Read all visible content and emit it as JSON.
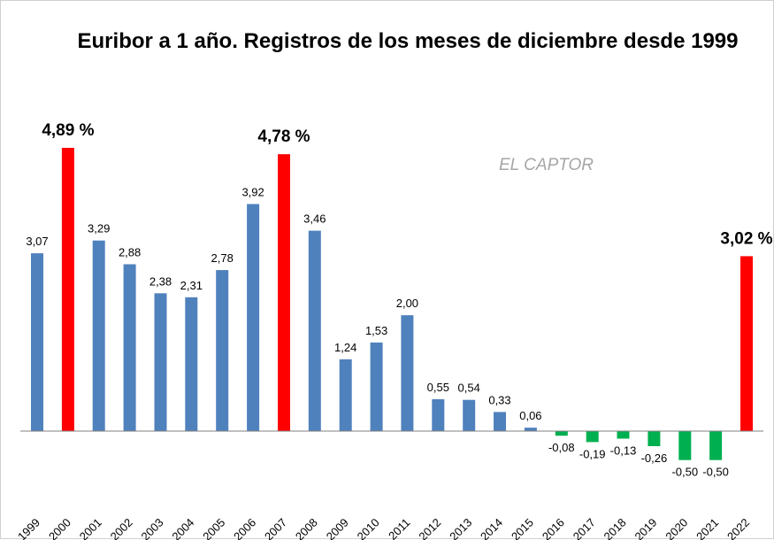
{
  "watermark": "EL CAPTOR",
  "colors": {
    "normal": "#4f81bd",
    "peak": "#ff0000",
    "negative": "#00b050",
    "axis": "#808080"
  },
  "chart_data": {
    "type": "bar",
    "title": "Euribor a 1 año. Registros de los meses de diciembre desde 1999",
    "xlabel": "",
    "ylabel": "",
    "ylim": [
      -0.7,
      5.3
    ],
    "grid": false,
    "categories": [
      "1999",
      "2000",
      "2001",
      "2002",
      "2003",
      "2004",
      "2005",
      "2006",
      "2007",
      "2008",
      "2009",
      "2010",
      "2011",
      "2012",
      "2013",
      "2014",
      "2015",
      "2016",
      "2017",
      "2018",
      "2019",
      "2020",
      "2021",
      "2022"
    ],
    "values": [
      3.07,
      4.89,
      3.29,
      2.88,
      2.38,
      2.31,
      2.78,
      3.92,
      4.78,
      3.46,
      1.24,
      1.53,
      2.0,
      0.55,
      0.54,
      0.33,
      0.06,
      -0.08,
      -0.19,
      -0.13,
      -0.26,
      -0.5,
      -0.5,
      3.02
    ],
    "data_labels": [
      "3,07",
      "4,89 %",
      "3,29",
      "2,88",
      "2,38",
      "2,31",
      "2,78",
      "3,92",
      "4,78 %",
      "3,46",
      "1,24",
      "1,53",
      "2,00",
      "0,55",
      "0,54",
      "0,33",
      "0,06",
      "-0,08",
      "-0,19",
      "-0,13",
      "-0,26",
      "-0,50",
      "-0,50",
      "3,02 %"
    ],
    "bar_style": [
      "normal",
      "peak",
      "normal",
      "normal",
      "normal",
      "normal",
      "normal",
      "normal",
      "peak",
      "normal",
      "normal",
      "normal",
      "normal",
      "normal",
      "normal",
      "normal",
      "normal",
      "negative",
      "negative",
      "negative",
      "negative",
      "negative",
      "negative",
      "peak"
    ]
  }
}
